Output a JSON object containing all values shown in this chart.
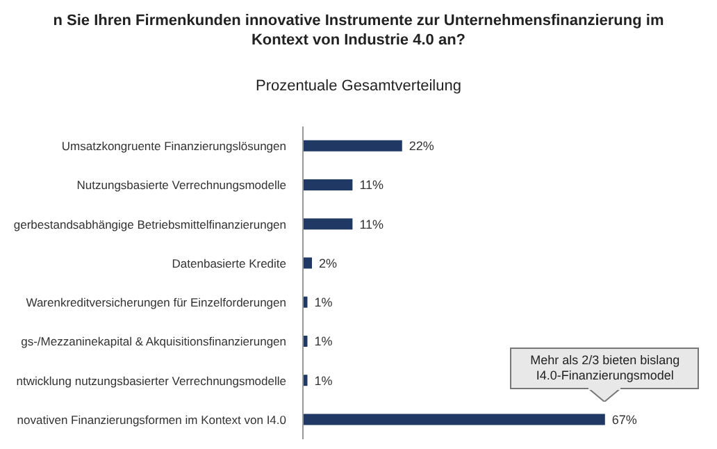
{
  "chart_data": {
    "type": "bar",
    "orientation": "horizontal",
    "title": "n Sie Ihren Firmenkunden innovative Instrumente zur Unternehmensfinanzierung im Kontext von Industrie 4.0 an?",
    "subtitle": "Prozentuale Gesamtverteilung",
    "categories": [
      "Umsatzkongruente Finanzierungslösungen",
      "Nutzungsbasierte Verrechnungsmodelle",
      "gerbestandsabhängige Betriebsmittelfinanzierungen",
      "Datenbasierte Kredite",
      "Warenkreditversicherungen für Einzelforderungen",
      "gs-/Mezzaninekapital & Akquisitionsfinanzierungen",
      "ntwicklung nutzungsbasierter Verrechnungsmodelle",
      "novativen Finanzierungsformen im Kontext von I4.0"
    ],
    "values": [
      22,
      11,
      11,
      2,
      1,
      1,
      1,
      67
    ],
    "value_labels": [
      "22%",
      "11%",
      "11%",
      "2%",
      "1%",
      "1%",
      "1%",
      "67%"
    ],
    "color": "#1f3864",
    "annotations": [
      "Mehr als 2/3 bieten bislang\nI4.0-Finanzierungsmodel"
    ]
  }
}
